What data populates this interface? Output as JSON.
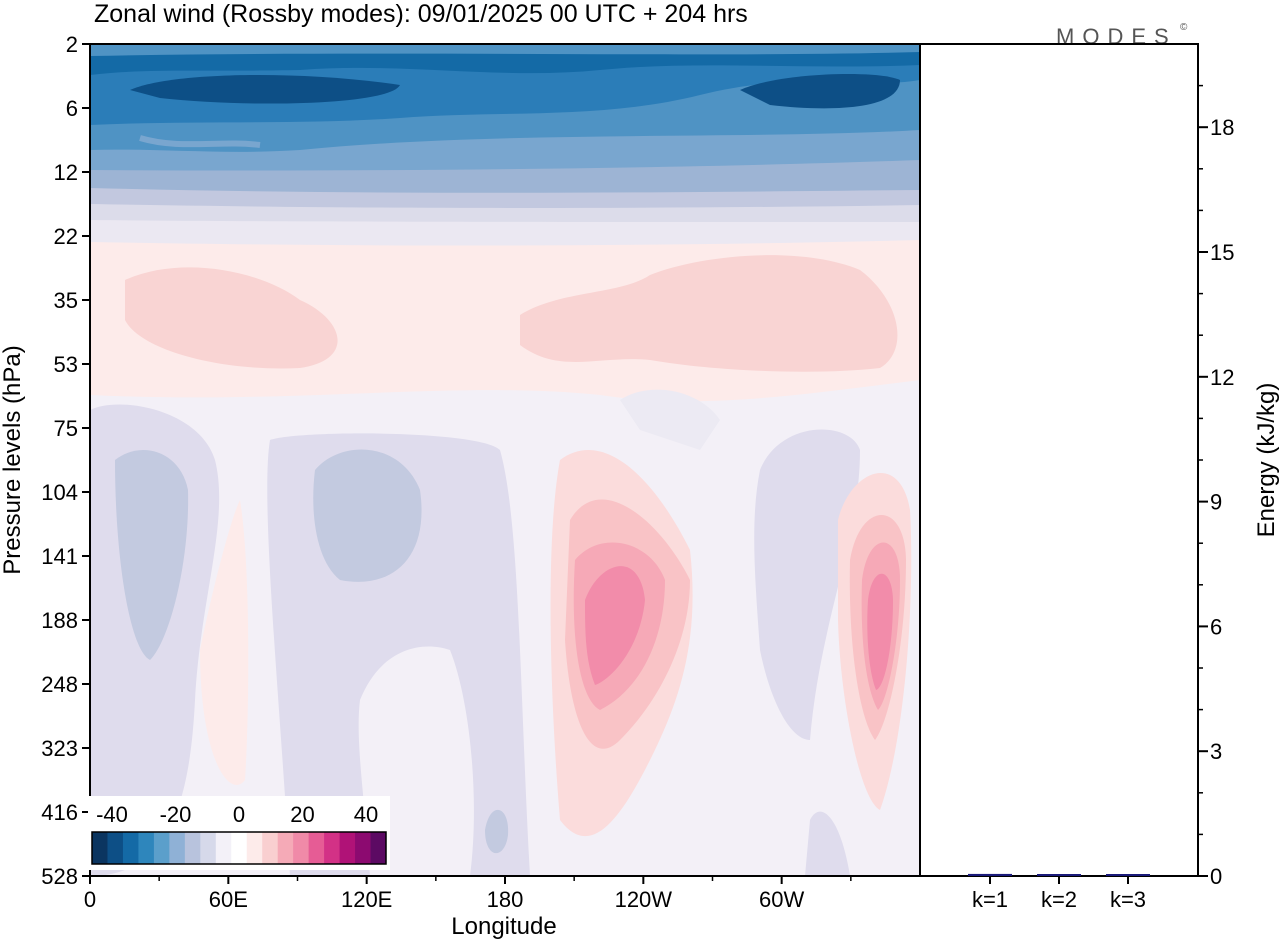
{
  "chart_data": [
    {
      "type": "heatmap",
      "title": "Zonal wind (Rossby modes):  09/01/2025  00 UTC  + 204 hrs",
      "xlabel": "Longitude",
      "ylabel": "Pressure levels (hPa)",
      "x_ticks": [
        {
          "lon": 0,
          "label": "0"
        },
        {
          "lon": 60,
          "label": "60E"
        },
        {
          "lon": 120,
          "label": "120E"
        },
        {
          "lon": 180,
          "label": "180"
        },
        {
          "lon": 240,
          "label": "120W"
        },
        {
          "lon": 300,
          "label": "60W"
        }
      ],
      "x_range": [
        0,
        360
      ],
      "y_levels": [
        "2",
        "6",
        "12",
        "22",
        "35",
        "53",
        "75",
        "104",
        "141",
        "188",
        "248",
        "323",
        "416",
        "528"
      ],
      "colorbar": {
        "tick_labels": [
          "-40",
          "-20",
          "0",
          "20",
          "40"
        ],
        "colors": [
          "#0b3560",
          "#0d4f86",
          "#146aa6",
          "#2e86bc",
          "#5b9fcb",
          "#8fb1d6",
          "#b8c3dd",
          "#d6d9ea",
          "#f3f1f8",
          "#ffffff",
          "#fdebea",
          "#f9cfd0",
          "#f5aab7",
          "#f08aa8",
          "#e65c95",
          "#d33186",
          "#b01277",
          "#8c0a70",
          "#5c0a63"
        ]
      }
    },
    {
      "type": "bar",
      "ylabel": "Energy (kJ/kg)",
      "categories": [
        "k=1",
        "k=2",
        "k=3"
      ],
      "values": [
        0.05,
        0.03,
        0.02
      ],
      "ylim": [
        0,
        20
      ],
      "y_ticks": [
        "0",
        "3",
        "6",
        "9",
        "12",
        "15",
        "18"
      ],
      "bar_color": "#1a1a7a"
    }
  ],
  "logo": "MODES",
  "logo_mark": "©"
}
